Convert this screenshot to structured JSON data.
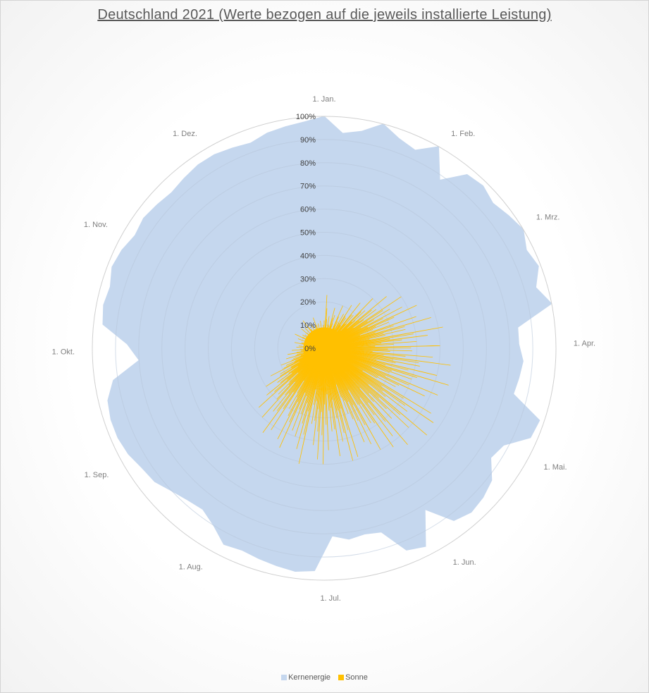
{
  "chart_data": {
    "type": "radar",
    "title": "Deutschland 2021 (Werte bezogen auf die jeweils installierte Leistung)",
    "radial_axis": {
      "range": [
        0,
        100
      ],
      "unit": "%",
      "ticks": [
        "0%",
        "10%",
        "20%",
        "30%",
        "40%",
        "50%",
        "60%",
        "70%",
        "80%",
        "90%",
        "100%"
      ]
    },
    "angular_labels": [
      {
        "label": "1. Jan.",
        "day": 0
      },
      {
        "label": "1. Feb.",
        "day": 31
      },
      {
        "label": "1. Mrz.",
        "day": 59
      },
      {
        "label": "1. Apr.",
        "day": 90
      },
      {
        "label": "1. Mai.",
        "day": 120
      },
      {
        "label": "1. Jun.",
        "day": 151
      },
      {
        "label": "1. Jul.",
        "day": 181
      },
      {
        "label": "1. Aug.",
        "day": 212
      },
      {
        "label": "1. Sep.",
        "day": 243
      },
      {
        "label": "1. Okt.",
        "day": 273
      },
      {
        "label": "1. Nov.",
        "day": 304
      },
      {
        "label": "1. Dez.",
        "day": 334
      }
    ],
    "days_in_year": 365,
    "grid": true,
    "legend_position": "bottom",
    "series": [
      {
        "name": "Kernenergie",
        "color": "#c5d7ee",
        "style": "filled",
        "day_step": 5,
        "values": [
          100,
          93,
          95,
          100,
          96,
          94,
          100,
          88,
          97,
          98,
          96,
          98,
          100,
          97,
          99,
          95,
          100,
          84,
          84,
          86,
          85,
          84,
          98,
          97,
          88,
          86,
          92,
          94,
          95,
          93,
          82,
          96,
          94,
          83,
          82,
          83,
          81,
          96,
          97,
          96,
          95,
          94,
          95,
          90,
          87,
          88,
          90,
          93,
          94,
          96,
          97,
          97,
          96,
          92,
          80,
          85,
          96,
          97,
          96,
          98,
          97,
          95,
          96,
          95,
          94,
          95,
          96,
          96,
          95,
          94,
          96,
          97,
          98
        ]
      },
      {
        "name": "Sonne",
        "color": "#ffc000",
        "style": "spikes",
        "day_step": 3,
        "values": [
          12,
          23,
          8,
          14,
          10,
          18,
          15,
          9,
          20,
          13,
          17,
          22,
          16,
          25,
          19,
          30,
          24,
          35,
          28,
          40,
          33,
          38,
          44,
          30,
          42,
          48,
          36,
          52,
          45,
          40,
          50,
          38,
          47,
          55,
          42,
          50,
          56,
          40,
          53,
          48,
          35,
          54,
          57,
          45,
          58,
          50,
          42,
          55,
          48,
          52,
          38,
          50,
          46,
          44,
          30,
          49,
          50,
          41,
          47,
          36,
          44,
          50,
          48,
          42,
          33,
          51,
          45,
          40,
          38,
          47,
          44,
          30,
          42,
          45,
          35,
          40,
          28,
          38,
          32,
          25,
          30,
          22,
          26,
          18,
          20,
          14,
          17,
          12,
          16,
          10,
          14,
          9,
          12,
          11,
          8,
          13,
          10,
          7,
          12,
          9,
          14,
          8,
          11,
          10,
          6,
          13,
          9,
          12,
          7,
          15,
          10,
          8,
          12,
          6,
          10,
          14,
          8,
          11,
          9,
          12,
          7,
          10
        ]
      }
    ]
  }
}
